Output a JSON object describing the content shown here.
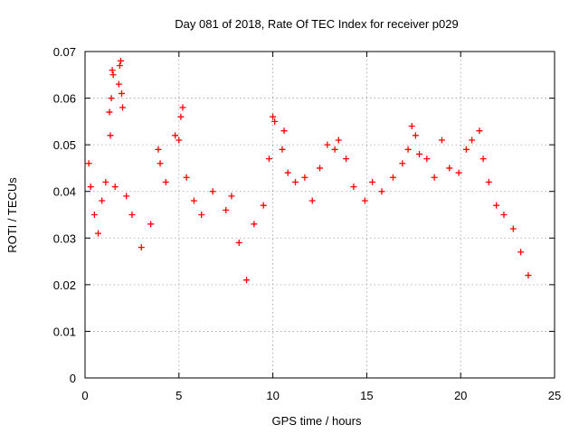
{
  "chart_data": {
    "type": "scatter",
    "title": "Day 081 of 2018, Rate Of TEC Index for receiver p029",
    "xlabel": "GPS time / hours",
    "ylabel": "ROTI / TECUs",
    "xlim": [
      0,
      25
    ],
    "ylim": [
      0,
      0.07
    ],
    "x_ticks": [
      0,
      5,
      10,
      15,
      20,
      25
    ],
    "x_tick_labels": [
      "0",
      "5",
      "10",
      "15",
      "20",
      "25"
    ],
    "y_ticks": [
      0,
      0.01,
      0.02,
      0.03,
      0.04,
      0.05,
      0.06,
      0.07
    ],
    "y_tick_labels": [
      "0",
      "0.01",
      "0.02",
      "0.03",
      "0.04",
      "0.05",
      "0.06",
      "0.07"
    ],
    "grid": true,
    "marker": "+",
    "color": "#ff0000",
    "x_range_of_data": [
      0,
      23.8
    ],
    "series": [
      {
        "points": [
          [
            0.2,
            0.046
          ],
          [
            0.3,
            0.041
          ],
          [
            0.5,
            0.035
          ],
          [
            0.7,
            0.031
          ],
          [
            0.9,
            0.038
          ],
          [
            1.1,
            0.042
          ],
          [
            1.3,
            0.057
          ],
          [
            1.35,
            0.052
          ],
          [
            1.4,
            0.06
          ],
          [
            1.45,
            0.066
          ],
          [
            1.5,
            0.065
          ],
          [
            1.6,
            0.041
          ],
          [
            1.8,
            0.063
          ],
          [
            1.85,
            0.067
          ],
          [
            1.9,
            0.068
          ],
          [
            1.95,
            0.061
          ],
          [
            2.0,
            0.058
          ],
          [
            2.2,
            0.039
          ],
          [
            2.5,
            0.035
          ],
          [
            3.0,
            0.028
          ],
          [
            3.5,
            0.033
          ],
          [
            3.9,
            0.049
          ],
          [
            4.0,
            0.046
          ],
          [
            4.3,
            0.042
          ],
          [
            4.8,
            0.052
          ],
          [
            5.0,
            0.051
          ],
          [
            5.1,
            0.056
          ],
          [
            5.2,
            0.058
          ],
          [
            5.4,
            0.043
          ],
          [
            5.8,
            0.038
          ],
          [
            6.2,
            0.035
          ],
          [
            6.8,
            0.04
          ],
          [
            7.5,
            0.036
          ],
          [
            7.8,
            0.039
          ],
          [
            8.2,
            0.029
          ],
          [
            8.6,
            0.021
          ],
          [
            9.0,
            0.033
          ],
          [
            9.5,
            0.037
          ],
          [
            9.8,
            0.047
          ],
          [
            10.0,
            0.056
          ],
          [
            10.1,
            0.055
          ],
          [
            10.5,
            0.049
          ],
          [
            10.6,
            0.053
          ],
          [
            10.8,
            0.044
          ],
          [
            11.2,
            0.042
          ],
          [
            11.7,
            0.043
          ],
          [
            12.1,
            0.038
          ],
          [
            12.5,
            0.045
          ],
          [
            12.9,
            0.05
          ],
          [
            13.3,
            0.049
          ],
          [
            13.5,
            0.051
          ],
          [
            13.9,
            0.047
          ],
          [
            14.3,
            0.041
          ],
          [
            14.9,
            0.038
          ],
          [
            15.3,
            0.042
          ],
          [
            15.8,
            0.04
          ],
          [
            16.4,
            0.043
          ],
          [
            16.9,
            0.046
          ],
          [
            17.2,
            0.049
          ],
          [
            17.4,
            0.054
          ],
          [
            17.6,
            0.052
          ],
          [
            17.8,
            0.048
          ],
          [
            18.2,
            0.047
          ],
          [
            18.6,
            0.043
          ],
          [
            19.0,
            0.051
          ],
          [
            19.4,
            0.045
          ],
          [
            19.9,
            0.044
          ],
          [
            20.3,
            0.049
          ],
          [
            20.6,
            0.051
          ],
          [
            21.0,
            0.053
          ],
          [
            21.2,
            0.047
          ],
          [
            21.5,
            0.042
          ],
          [
            21.9,
            0.037
          ],
          [
            22.3,
            0.035
          ],
          [
            22.8,
            0.032
          ],
          [
            23.2,
            0.027
          ],
          [
            23.6,
            0.022
          ]
        ]
      }
    ]
  }
}
